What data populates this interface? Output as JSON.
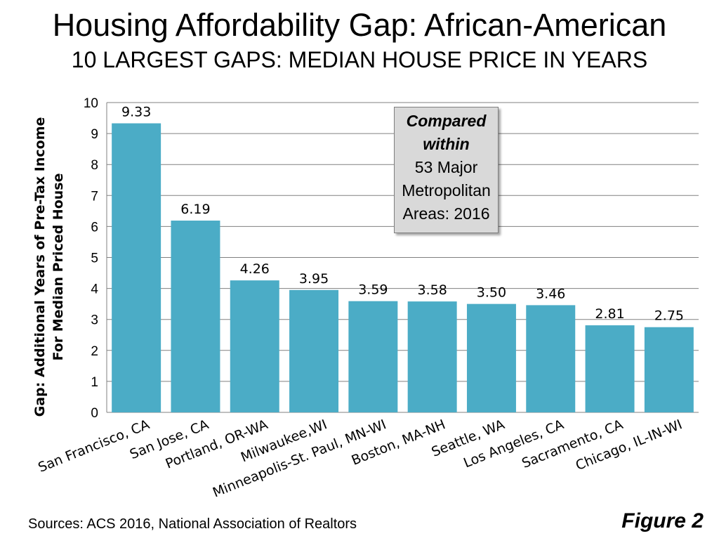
{
  "chart_data": {
    "type": "bar",
    "title": "Housing Affordability Gap: African-American",
    "subtitle": "10 LARGEST GAPS: MEDIAN HOUSE PRICE IN YEARS",
    "ylabel_lines": [
      "Gap: Additional Years of Pre-Tax Income",
      "For Median Priced House"
    ],
    "xlabel": "",
    "categories": [
      "San Francisco, CA",
      "San Jose, CA",
      "Portland, OR-WA",
      "Milwaukee,WI",
      "Minneapolis-St. Paul, MN-WI",
      "Boston, MA-NH",
      "Seattle, WA",
      "Los Angeles, CA",
      "Sacramento, CA",
      "Chicago, IL-IN-WI"
    ],
    "values": [
      9.33,
      6.19,
      4.26,
      3.95,
      3.59,
      3.58,
      3.5,
      3.46,
      2.81,
      2.75
    ],
    "data_labels": [
      "9.33",
      "6.19",
      "4.26",
      "3.95",
      "3.59",
      "3.58",
      "3.50",
      "3.46",
      "2.81",
      "2.75"
    ],
    "ylim": [
      0,
      10
    ],
    "yticks": [
      "0",
      "1",
      "2",
      "3",
      "4",
      "5",
      "6",
      "7",
      "8",
      "9",
      "10"
    ],
    "grid": true,
    "bar_color": "#4bacc6"
  },
  "callout": {
    "line1": "Compared",
    "line2": "within",
    "line3": "53 Major",
    "line4": "Metropolitan",
    "line5": "Areas: 2016"
  },
  "footer": {
    "source": "Sources: ACS 2016, National Association of Realtors",
    "figure_label": "Figure 2"
  }
}
